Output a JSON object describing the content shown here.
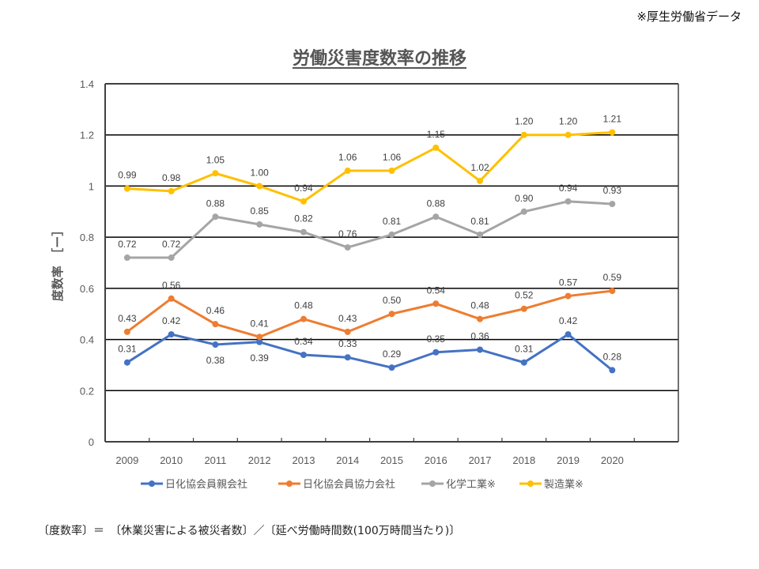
{
  "source_note": "※厚生労働省データ",
  "title": "労働災害度数率の推移",
  "formula_note": "〔度数率〕＝　〔休業災害による被災者数〕／〔延べ労働時間数(100万時間当たり)〕",
  "chart_data": {
    "type": "line",
    "title": "労働災害度数率の推移",
    "xlabel": "",
    "ylabel": "度数率　［ー］",
    "x": [
      "2009",
      "2010",
      "2011",
      "2012",
      "2013",
      "2014",
      "2015",
      "2016",
      "2017",
      "2018",
      "2019",
      "2020"
    ],
    "ylim": [
      0,
      1.4
    ],
    "yticks": [
      0,
      0.2,
      0.4,
      0.6,
      0.8,
      1,
      1.2,
      1.4
    ],
    "ytick_labels": [
      "0",
      "0.2",
      "0.4",
      "0.6",
      "0.8",
      "1",
      "1.2",
      "1.4"
    ],
    "grid": true,
    "legend_position": "bottom",
    "series": [
      {
        "name": "日化協会員親会社",
        "color": "#4472C4",
        "values": [
          0.31,
          0.42,
          0.38,
          0.39,
          0.34,
          0.33,
          0.29,
          0.35,
          0.36,
          0.31,
          0.42,
          0.28
        ],
        "labels": [
          "0.31",
          "0.42",
          "0.38",
          "0.39",
          "0.34",
          "0.33",
          "0.29",
          "0.35",
          "0.36",
          "0.31",
          "0.42",
          "0.28"
        ]
      },
      {
        "name": "日化協会員協力会社",
        "color": "#ED7D31",
        "values": [
          0.43,
          0.56,
          0.46,
          0.41,
          0.48,
          0.43,
          0.5,
          0.54,
          0.48,
          0.52,
          0.57,
          0.59
        ],
        "labels": [
          "0.43",
          "0.56",
          "0.46",
          "0.41",
          "0.48",
          "0.43",
          "0.50",
          "0.54",
          "0.48",
          "0.52",
          "0.57",
          "0.59"
        ]
      },
      {
        "name": "化学工業※",
        "color": "#A5A5A5",
        "values": [
          0.72,
          0.72,
          0.88,
          0.85,
          0.82,
          0.76,
          0.81,
          0.88,
          0.81,
          0.9,
          0.94,
          0.93
        ],
        "labels": [
          "0.72",
          "0.72",
          "0.88",
          "0.85",
          "0.82",
          "0.76",
          "0.81",
          "0.88",
          "0.81",
          "0.90",
          "0.94",
          "0.93"
        ]
      },
      {
        "name": "製造業※",
        "color": "#FFC000",
        "values": [
          0.99,
          0.98,
          1.05,
          1.0,
          0.94,
          1.06,
          1.06,
          1.15,
          1.02,
          1.2,
          1.2,
          1.21
        ],
        "labels": [
          "0.99",
          "0.98",
          "1.05",
          "1.00",
          "0.94",
          "1.06",
          "1.06",
          "1.15",
          "1.02",
          "1.20",
          "1.20",
          "1.21"
        ]
      }
    ]
  }
}
